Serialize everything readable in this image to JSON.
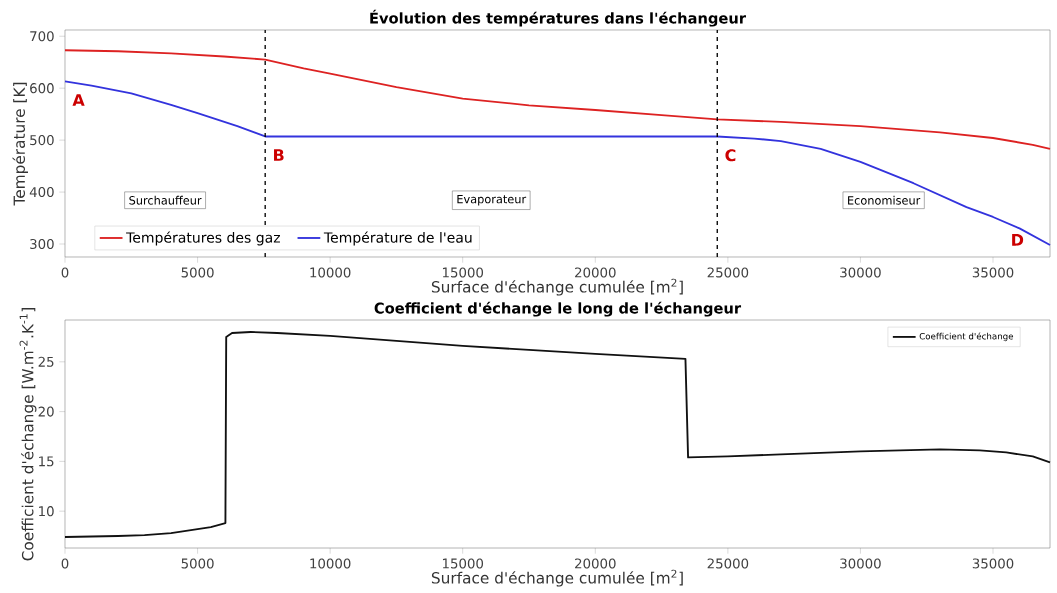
{
  "chart_data": [
    {
      "type": "line",
      "title": "Évolution des températures dans l'échangeur",
      "xlabel": "Surface d'échange cumulée [m$^{2}$]",
      "ylabel": "Température [K]",
      "xlim": [
        0,
        37150
      ],
      "ylim": [
        275,
        712
      ],
      "xticks": [
        0,
        5000,
        10000,
        15000,
        20000,
        25000,
        30000,
        35000
      ],
      "yticks": [
        300,
        400,
        500,
        600,
        700
      ],
      "series": [
        {
          "name": "Températures des gaz",
          "color": "#dd2222",
          "x": [
            0,
            2000,
            4000,
            6000,
            7550,
            9000,
            10000,
            12500,
            15000,
            17500,
            20000,
            22500,
            24600,
            27000,
            30000,
            33000,
            35000,
            36500,
            37150
          ],
          "values": [
            673,
            671,
            667,
            661,
            655,
            638,
            628,
            602,
            580,
            567,
            558,
            548,
            540,
            535,
            527,
            515,
            504,
            491,
            483
          ]
        },
        {
          "name": "Température de l'eau",
          "color": "#3333dd",
          "x": [
            0,
            1000,
            2500,
            4000,
            5000,
            6500,
            7550,
            24600,
            26000,
            27000,
            28500,
            30000,
            32000,
            34000,
            35000,
            36000,
            37150
          ],
          "values": [
            613,
            605,
            590,
            568,
            552,
            527,
            507,
            507,
            503,
            498,
            483,
            458,
            417,
            371,
            352,
            330,
            298
          ]
        }
      ],
      "ref_lines": [
        {
          "axis": "x",
          "value": 7550,
          "color": "#000000",
          "line_style": "dashed"
        },
        {
          "axis": "x",
          "value": 24600,
          "color": "#000000",
          "line_style": "dashed"
        }
      ],
      "annotations": [
        {
          "text": "A",
          "x": 0,
          "y": 613
        },
        {
          "text": "B",
          "x": 7550,
          "y": 507
        },
        {
          "text": "C",
          "x": 24600,
          "y": 507
        },
        {
          "text": "D",
          "x": 37150,
          "y": 298
        },
        "Surchauffeur",
        "Evaporateur",
        "Economiseur"
      ],
      "legend": "bottom left",
      "marker": "none",
      "line_style": "solid",
      "grid": false
    },
    {
      "type": "line",
      "title": "Coefficient d'échange le long de l'échangeur",
      "xlabel": "Surface d'échange cumulée [m$^{2}$]",
      "ylabel": "Coefficient d'échange [W.m$^{-2}$.K$^{-1}$]",
      "xlim": [
        0,
        37150
      ],
      "ylim": [
        6.3,
        29.2
      ],
      "xticks": [
        0,
        5000,
        10000,
        15000,
        20000,
        25000,
        30000,
        35000
      ],
      "yticks": [
        10,
        15,
        20,
        25
      ],
      "series": [
        {
          "name": "Coefficient d'échange",
          "color": "#111111",
          "x": [
            0,
            2000,
            3000,
            4000,
            5000,
            5500,
            6050,
            6080,
            6300,
            7000,
            8000,
            10000,
            12500,
            15000,
            17500,
            20000,
            23400,
            23500,
            25000,
            27000,
            30000,
            33000,
            34500,
            35500,
            36500,
            37150
          ],
          "values": [
            7.4,
            7.5,
            7.6,
            7.8,
            8.2,
            8.4,
            8.8,
            27.5,
            27.9,
            28.0,
            27.9,
            27.6,
            27.1,
            26.6,
            26.2,
            25.8,
            25.3,
            15.4,
            15.5,
            15.7,
            16.0,
            16.2,
            16.1,
            15.9,
            15.5,
            14.9
          ]
        }
      ],
      "legend": "top right",
      "marker": "none",
      "line_style": "solid",
      "grid": false
    }
  ]
}
